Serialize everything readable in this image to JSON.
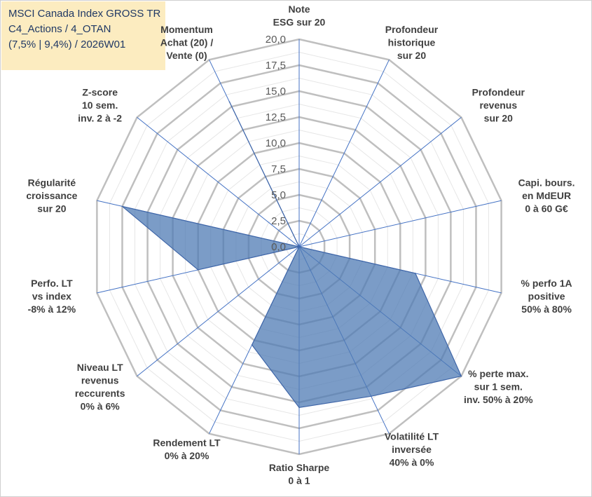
{
  "title_lines": [
    "MSCI Canada Index GROSS TR",
    "C4_Actions / 4_OTAN",
    "(7,5% | 9,4%) / 2026W01"
  ],
  "colors": {
    "fill": "#4f7bb4",
    "stroke": "#3f66a8",
    "spoke": "#4472c4",
    "ring": "#bfbfbf",
    "minor_ring": "#e6e6e6",
    "title_bg": "#fcecc0",
    "title_text": "#1f3864"
  },
  "chart_data": {
    "type": "radar",
    "title": "MSCI Canada Index GROSS TR",
    "r_range": [
      0,
      20
    ],
    "r_ticks": [
      "0,0",
      "2,5",
      "5,0",
      "7,5",
      "10,0",
      "12,5",
      "15,0",
      "17,5",
      "20,0"
    ],
    "axes": [
      {
        "lines": [
          "Note",
          "ESG sur 20"
        ]
      },
      {
        "lines": [
          "Profondeur",
          "historique",
          "sur 20"
        ]
      },
      {
        "lines": [
          "Profondeur",
          "revenus",
          "sur 20"
        ]
      },
      {
        "lines": [
          "Capi. bours.",
          "en MdEUR",
          "0 à 60 G€"
        ]
      },
      {
        "lines": [
          "% perfo 1A",
          "positive",
          "50% à 80%"
        ]
      },
      {
        "lines": [
          "% perte max.",
          "sur 1 sem.",
          "inv. 50% à 20%"
        ]
      },
      {
        "lines": [
          "Volatilité LT",
          "inversée",
          "40% à 0%"
        ]
      },
      {
        "lines": [
          "Ratio Sharpe",
          "0 à 1"
        ]
      },
      {
        "lines": [
          "Rendement LT",
          "0% à 20%"
        ]
      },
      {
        "lines": [
          "Niveau LT",
          "revenus",
          "reccurents",
          "0% à 6%"
        ]
      },
      {
        "lines": [
          "Perfo. LT",
          "vs index",
          "-8% à 12%"
        ]
      },
      {
        "lines": [
          "Régularité",
          "croissance",
          "sur 20"
        ]
      },
      {
        "lines": [
          "Z-score",
          "10 sem.",
          "inv. 2 à -2"
        ]
      },
      {
        "lines": [
          "Momentum",
          "Achat (20) /",
          "Vente (0)"
        ]
      }
    ],
    "values": [
      0,
      0,
      0,
      0,
      11.5,
      20,
      16,
      15.5,
      10.5,
      0,
      10,
      17.5,
      0,
      15.5
    ]
  }
}
